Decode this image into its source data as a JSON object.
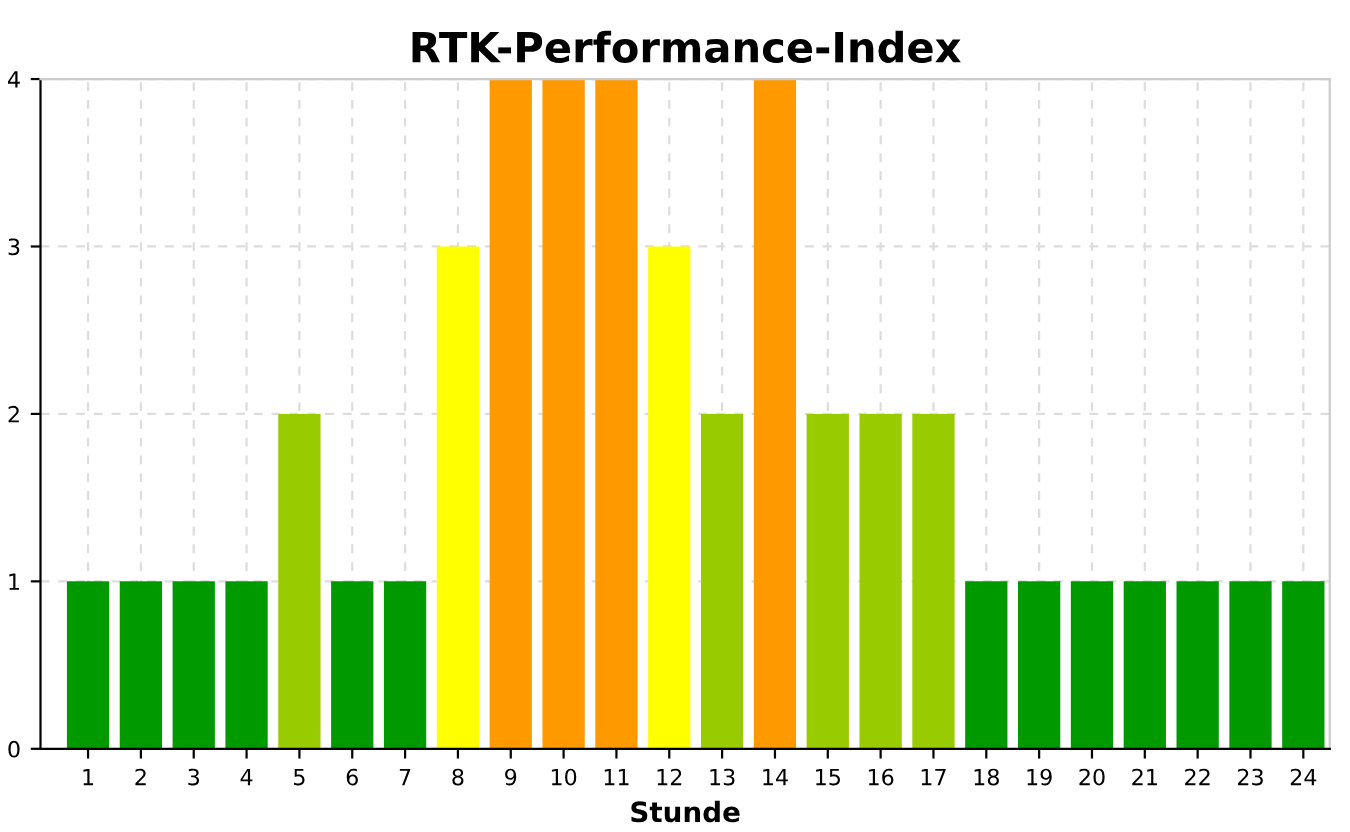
{
  "chart_data": {
    "type": "bar",
    "title": "RTK-Performance-Index",
    "xlabel": "Stunde",
    "categories": [
      "1",
      "2",
      "3",
      "4",
      "5",
      "6",
      "7",
      "8",
      "9",
      "10",
      "11",
      "12",
      "13",
      "14",
      "15",
      "16",
      "17",
      "18",
      "19",
      "20",
      "21",
      "22",
      "23",
      "24"
    ],
    "values": [
      1,
      1,
      1,
      1,
      2,
      1,
      1,
      3,
      4,
      4,
      4,
      3,
      2,
      4,
      2,
      2,
      2,
      1,
      1,
      1,
      1,
      1,
      1,
      1
    ],
    "colors": [
      "#009900",
      "#009900",
      "#009900",
      "#009900",
      "#99cc00",
      "#009900",
      "#009900",
      "#ffff00",
      "#ff9900",
      "#ff9900",
      "#ff9900",
      "#ffff00",
      "#99cc00",
      "#ff9900",
      "#99cc00",
      "#99cc00",
      "#99cc00",
      "#009900",
      "#009900",
      "#009900",
      "#009900",
      "#009900",
      "#009900",
      "#009900"
    ],
    "ylim": [
      0,
      4
    ],
    "yticks": [
      0,
      1,
      2,
      3,
      4
    ],
    "grid": true
  }
}
